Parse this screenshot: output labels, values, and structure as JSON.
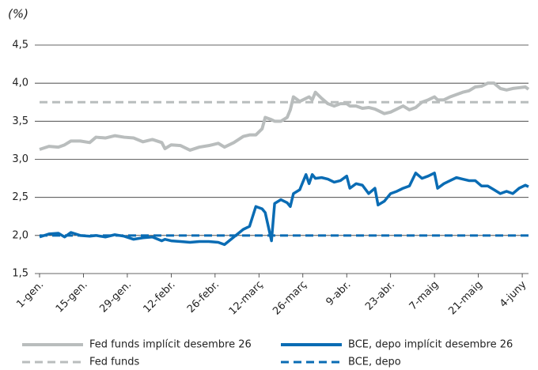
{
  "chart_data": {
    "type": "line",
    "y_label": "(%)",
    "x": [
      0,
      3,
      6,
      8,
      10,
      13,
      16,
      18,
      21,
      24,
      27,
      30,
      33,
      36,
      39,
      40,
      42,
      45,
      48,
      51,
      54,
      57,
      59,
      62,
      65,
      67,
      69,
      71,
      72,
      74,
      75,
      77,
      79,
      80,
      81,
      83,
      85,
      86,
      87,
      88,
      90,
      92,
      94,
      96,
      98,
      99,
      101,
      103,
      105,
      107,
      108,
      110,
      112,
      114,
      116,
      118,
      120,
      122,
      124,
      126,
      127,
      129,
      131,
      133,
      135,
      137,
      139,
      141,
      143,
      145,
      147,
      149,
      151,
      153,
      155,
      156
    ],
    "xlim": [
      0,
      156
    ],
    "xticks": [
      {
        "value": 0,
        "label": "1-gen."
      },
      {
        "value": 14,
        "label": "15-gen."
      },
      {
        "value": 28,
        "label": "29-gen."
      },
      {
        "value": 42,
        "label": "12-febr."
      },
      {
        "value": 56,
        "label": "26-febr."
      },
      {
        "value": 70,
        "label": "12-març"
      },
      {
        "value": 84,
        "label": "26-març"
      },
      {
        "value": 98,
        "label": "9-abr."
      },
      {
        "value": 112,
        "label": "23-abr."
      },
      {
        "value": 126,
        "label": "7-maig"
      },
      {
        "value": 140,
        "label": "21-maig"
      },
      {
        "value": 154,
        "label": "4-juny"
      }
    ],
    "ylim": [
      1.5,
      4.5
    ],
    "yticks": [
      {
        "value": 1.5,
        "label": "1,5"
      },
      {
        "value": 2,
        "label": "2,0"
      },
      {
        "value": 2.5,
        "label": "2,5"
      },
      {
        "value": 3,
        "label": "3,0"
      },
      {
        "value": 3.5,
        "label": "3,5"
      },
      {
        "value": 4,
        "label": "4,0"
      },
      {
        "value": 4.5,
        "label": "4,5"
      }
    ],
    "grid": true,
    "legend": "bottom",
    "series": [
      {
        "name": "Fed funds implícit desembre 26",
        "color": "#b9bdbd",
        "dash": false,
        "values": [
          3.13,
          3.17,
          3.16,
          3.19,
          3.24,
          3.24,
          3.22,
          3.29,
          3.28,
          3.31,
          3.29,
          3.28,
          3.23,
          3.26,
          3.22,
          3.14,
          3.19,
          3.18,
          3.12,
          3.16,
          3.18,
          3.21,
          3.16,
          3.22,
          3.3,
          3.32,
          3.32,
          3.4,
          3.55,
          3.52,
          3.5,
          3.5,
          3.55,
          3.65,
          3.82,
          3.76,
          3.8,
          3.82,
          3.78,
          3.88,
          3.8,
          3.73,
          3.7,
          3.73,
          3.73,
          3.7,
          3.7,
          3.67,
          3.68,
          3.66,
          3.64,
          3.6,
          3.62,
          3.66,
          3.7,
          3.65,
          3.68,
          3.75,
          3.78,
          3.82,
          3.78,
          3.78,
          3.82,
          3.85,
          3.88,
          3.9,
          3.95,
          3.96,
          4.0,
          4.0,
          3.93,
          3.91,
          3.93,
          3.94,
          3.95,
          3.92
        ]
      },
      {
        "name": "BCE, depo implícit desembre 26",
        "color": "#0a6cb4",
        "dash": false,
        "values": [
          1.98,
          2.02,
          2.03,
          1.98,
          2.04,
          2.0,
          1.99,
          2.0,
          1.98,
          2.01,
          1.99,
          1.95,
          1.97,
          1.98,
          1.93,
          1.95,
          1.93,
          1.92,
          1.91,
          1.92,
          1.92,
          1.91,
          1.88,
          1.98,
          2.08,
          2.12,
          2.38,
          2.35,
          2.3,
          1.93,
          2.42,
          2.47,
          2.43,
          2.38,
          2.55,
          2.6,
          2.8,
          2.68,
          2.8,
          2.75,
          2.76,
          2.74,
          2.7,
          2.72,
          2.78,
          2.62,
          2.68,
          2.66,
          2.55,
          2.62,
          2.4,
          2.45,
          2.55,
          2.58,
          2.62,
          2.65,
          2.82,
          2.75,
          2.78,
          2.82,
          2.62,
          2.68,
          2.72,
          2.76,
          2.74,
          2.72,
          2.72,
          2.65,
          2.65,
          2.6,
          2.55,
          2.58,
          2.55,
          2.62,
          2.66,
          2.64
        ]
      },
      {
        "name": "Fed funds",
        "color": "#b9bdbd",
        "dash": true,
        "x": [
          0,
          156
        ],
        "values": [
          3.75,
          3.75
        ]
      },
      {
        "name": "BCE, depo",
        "color": "#0a6cb4",
        "dash": true,
        "x": [
          0,
          156
        ],
        "values": [
          2.0,
          2.0
        ]
      }
    ]
  }
}
